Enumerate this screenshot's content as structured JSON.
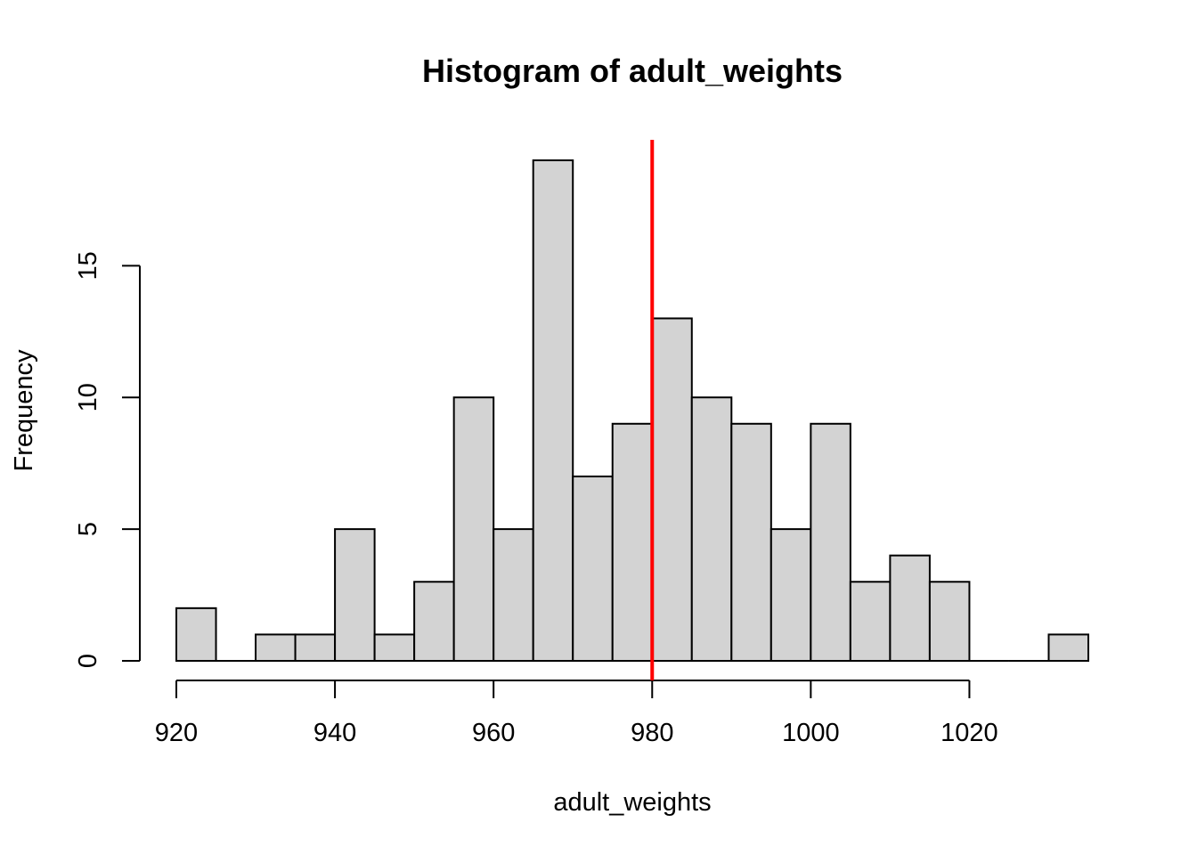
{
  "chart_data": {
    "type": "bar",
    "title": "Histogram of adult_weights",
    "xlabel": "adult_weights",
    "ylabel": "Frequency",
    "bin_edges": [
      920,
      925,
      930,
      935,
      940,
      945,
      950,
      955,
      960,
      965,
      970,
      975,
      980,
      985,
      990,
      995,
      1000,
      1005,
      1010,
      1015,
      1020,
      1025,
      1030,
      1035
    ],
    "values": [
      2,
      0,
      1,
      1,
      5,
      1,
      3,
      10,
      5,
      19,
      7,
      9,
      13,
      10,
      9,
      5,
      9,
      3,
      4,
      3,
      0,
      0,
      1
    ],
    "xlim": [
      920,
      1035
    ],
    "ylim": [
      0,
      19
    ],
    "x_ticks": [
      920,
      940,
      960,
      980,
      1000,
      1020
    ],
    "x_tick_labels": [
      "920",
      "940",
      "960",
      "980",
      "1000",
      "1020"
    ],
    "y_ticks": [
      0,
      5,
      10,
      15
    ],
    "y_tick_labels": [
      "0",
      "5",
      "10",
      "15"
    ],
    "reference_line": {
      "x": 980,
      "color": "#ff0000"
    },
    "bar_fill": "#d3d3d3",
    "bar_stroke": "#000000",
    "grid": false,
    "legend": "none"
  }
}
